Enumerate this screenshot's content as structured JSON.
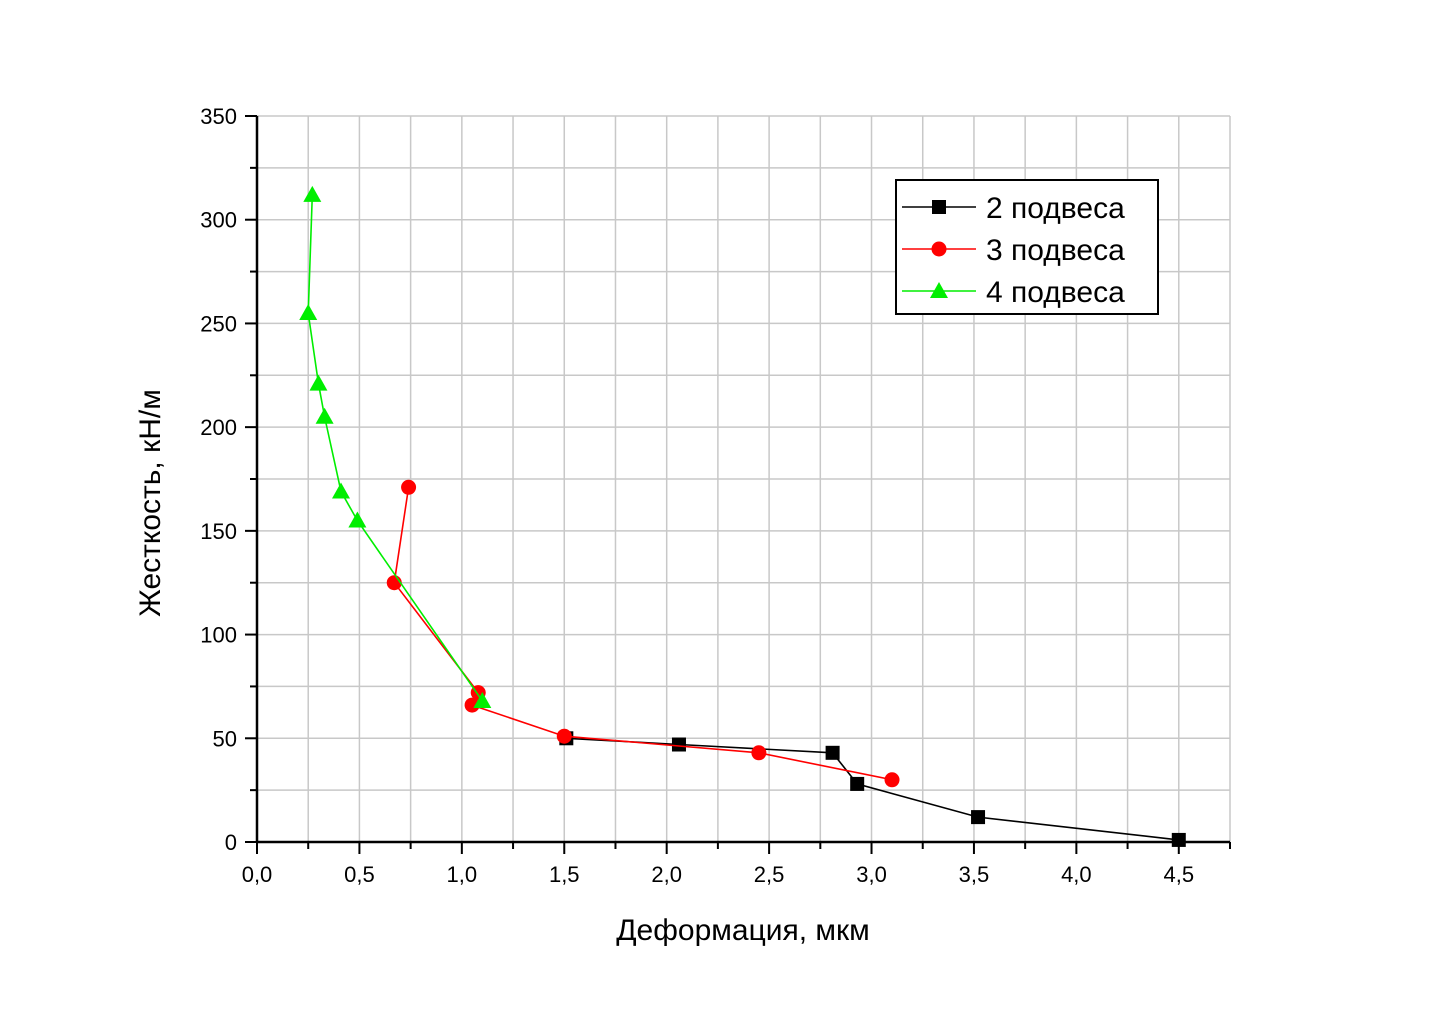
{
  "chart_data": {
    "type": "line",
    "xlabel": "Деформация, мкм",
    "ylabel": "Жесткость, кН/м",
    "xlim": [
      0,
      4.75
    ],
    "ylim": [
      0,
      350
    ],
    "x_ticks": [
      "0,0",
      "0,5",
      "1,0",
      "1,5",
      "2,0",
      "2,5",
      "3,0",
      "3,5",
      "4,0",
      "4,5"
    ],
    "x_tick_values": [
      0,
      0.5,
      1.0,
      1.5,
      2.0,
      2.5,
      3.0,
      3.5,
      4.0,
      4.5
    ],
    "y_ticks": [
      "0",
      "50",
      "100",
      "150",
      "200",
      "250",
      "300",
      "350"
    ],
    "y_tick_values": [
      0,
      50,
      100,
      150,
      200,
      250,
      300,
      350
    ],
    "grid": true,
    "legend_position": "top-right",
    "series": [
      {
        "name": "2 подвеса",
        "color": "#000000",
        "marker": "square",
        "x": [
          1.51,
          2.06,
          2.81,
          2.93,
          3.52,
          4.5
        ],
        "y": [
          50,
          47,
          43,
          28,
          12,
          1
        ]
      },
      {
        "name": "3 подвеса",
        "color": "#ff0000",
        "marker": "circle",
        "x": [
          0.74,
          0.67,
          1.08,
          1.05,
          1.5,
          2.45,
          3.1
        ],
        "y": [
          171,
          125,
          72,
          66,
          51,
          43,
          30
        ]
      },
      {
        "name": "4 подвеса",
        "color": "#00ee00",
        "marker": "triangle",
        "x": [
          0.27,
          0.25,
          0.3,
          0.33,
          0.41,
          0.49,
          1.1
        ],
        "y": [
          312,
          255,
          221,
          205,
          169,
          155,
          68
        ]
      }
    ]
  }
}
